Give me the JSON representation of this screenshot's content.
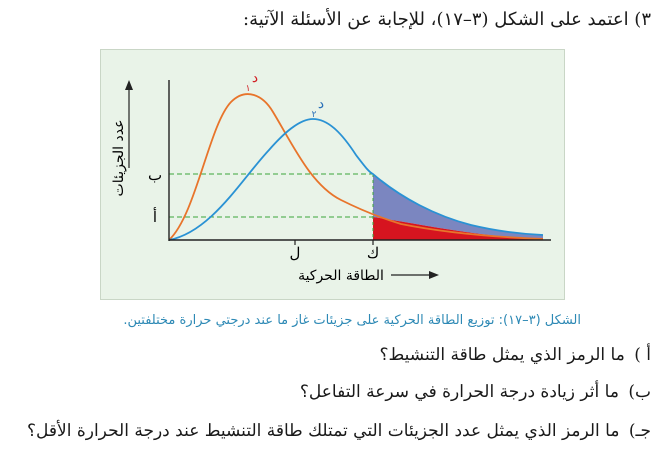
{
  "question": {
    "intro": "٣) اعتمد على الشكل (٣–١٧)، للإجابة عن الأسئلة الآتية:"
  },
  "figure": {
    "y_axis_label": "عدد الجزيئات",
    "x_axis_label": "الطاقة الحركية",
    "tick_b": "ب",
    "tick_a": "أ",
    "tick_l": "ل",
    "tick_k": "ك",
    "curve1_label": "د",
    "curve1_sub": "١",
    "curve2_label": "د",
    "curve2_sub": "٢",
    "colors": {
      "curve1": "#e8742b",
      "curve2": "#2a92d4",
      "area_upper": "#7b86c0",
      "area_lower": "#d6141f",
      "guide": "#3aa53a",
      "red_label": "#d11f24",
      "blue_label": "#2a70b8"
    }
  },
  "caption": "الشكل (٣–١٧): توزيع الطاقة الحركية على جزيئات غاز ما عند درجتي حرارة مختلفتين.",
  "items": [
    {
      "prefix": "أ )",
      "text": "ما الرمز الذي يمثل طاقة التنشيط؟"
    },
    {
      "prefix": "ب)",
      "text": "ما أثر زيادة درجة الحرارة في سرعة التفاعل؟"
    },
    {
      "prefix": "جـ)",
      "text": "ما الرمز الذي يمثل عدد الجزيئات التي تمتلك طاقة التنشيط عند درجة الحرارة الأقل؟"
    }
  ]
}
